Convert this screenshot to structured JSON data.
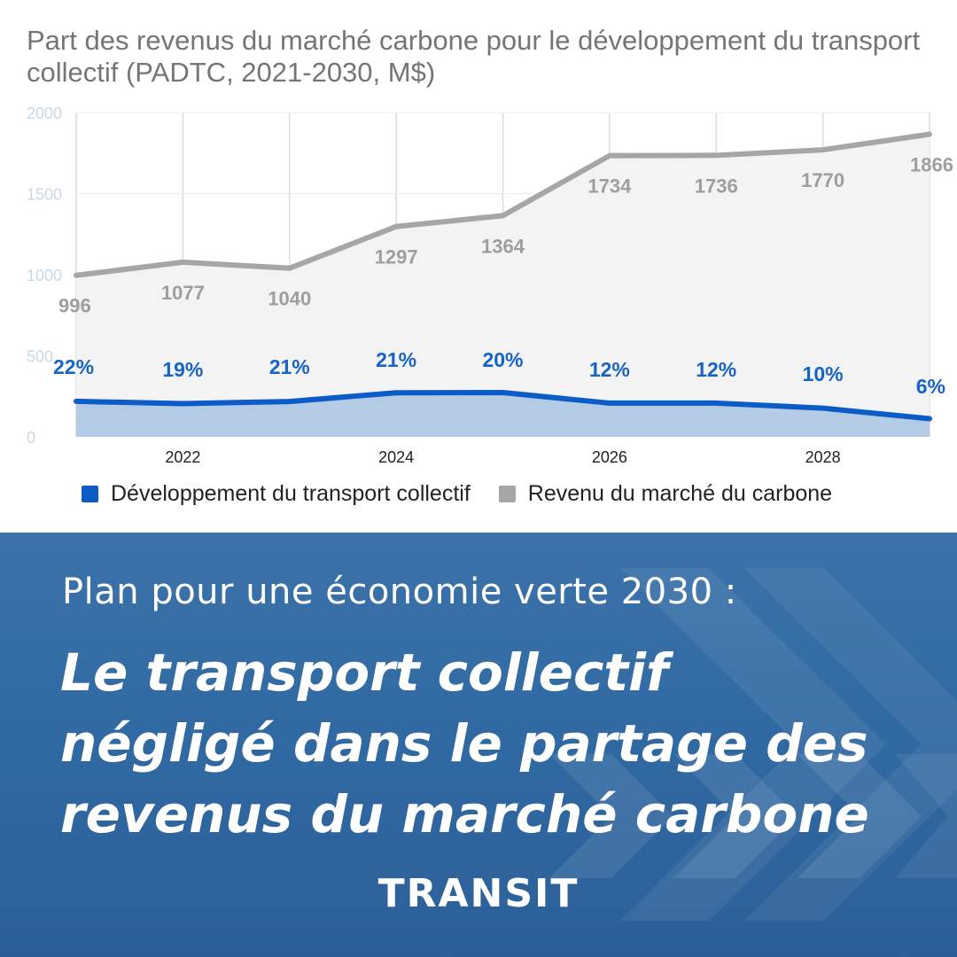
{
  "chart_data": {
    "type": "area",
    "title": "Part des revenus du marché carbone pour le développement du transport collectif (PADTC, 2021-2030, M$)",
    "x": [
      2021,
      2022,
      2023,
      2024,
      2025,
      2026,
      2027,
      2028,
      2029
    ],
    "x_tick_labels": [
      "2022",
      "2024",
      "2026",
      "2028"
    ],
    "y_tick_labels": [
      "0",
      "500",
      "1000",
      "1500",
      "2000"
    ],
    "ylim": [
      0,
      2000
    ],
    "grid": true,
    "legend_position": "bottom-left",
    "series": [
      {
        "name": "Développement du transport collectif",
        "color": "#0b5cc7",
        "fill": "#b4cbe6",
        "values": [
          219,
          205,
          218,
          272,
          273,
          208,
          208,
          177,
          112
        ],
        "data_labels": [
          "22%",
          "19%",
          "21%",
          "21%",
          "20%",
          "12%",
          "12%",
          "10%",
          "6%"
        ]
      },
      {
        "name": "Revenu du marché du carbone",
        "color": "#a6a6a6",
        "fill": "#f3f3f3",
        "values": [
          996,
          1077,
          1040,
          1297,
          1364,
          1734,
          1736,
          1770,
          1866
        ],
        "data_labels": [
          "996",
          "1077",
          "1040",
          "1297",
          "1364",
          "1734",
          "1736",
          "1770",
          "1866"
        ]
      }
    ]
  },
  "banner": {
    "subtitle": "Plan pour une économie verte 2030 :",
    "headline_lines": [
      "Le transport collectif",
      "négligé dans le partage des",
      "revenus du marché carbone"
    ],
    "brand": "TRANSIT"
  }
}
